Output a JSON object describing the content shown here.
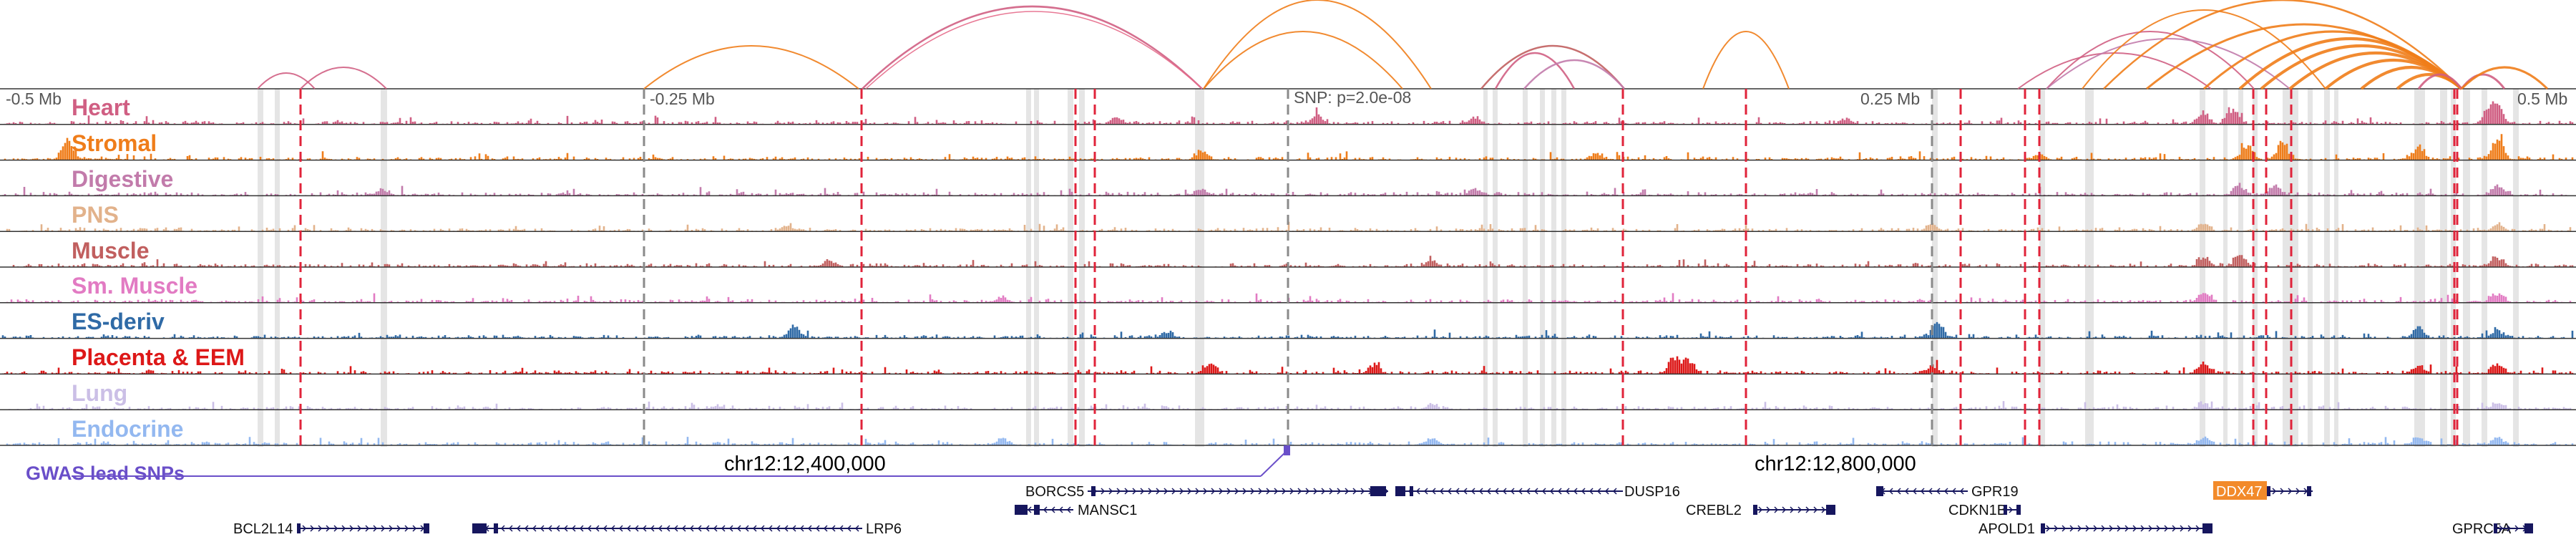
{
  "colors": {
    "Heart": "#d05f83",
    "Stromal": "#ef7d1a",
    "Digestive": "#c27bab",
    "PNS": "#e2b28b",
    "Muscle": "#c15f5f",
    "Sm. Muscle": "#e27bc3",
    "ES-deriv": "#2f6aa6",
    "Placenta & EEM": "#dd1818",
    "Lung": "#cbbfe6",
    "Endocrine": "#93b8f0",
    "gwas": "#6a4fc9",
    "gene": "#16165e",
    "highlight_gene_bg": "#f28a2a",
    "boundary": "#e0233a"
  },
  "tracks": [
    "Heart",
    "Stromal",
    "Digestive",
    "PNS",
    "Muscle",
    "Sm. Muscle",
    "ES-deriv",
    "Placenta & EEM",
    "Lung",
    "Endocrine"
  ],
  "ruler": {
    "left": "-0.5 Mb",
    "mid_left": "-0.25 Mb",
    "snp": "SNP: p=2.0e-08",
    "mid_right": "0.25 Mb",
    "right": "0.5 Mb"
  },
  "gwas": {
    "label": "GWAS lead SNPs",
    "coord_left": "chr12:12,400,000",
    "coord_right": "chr12:12,800,000"
  },
  "genes": {
    "row1": [
      "BORCS5",
      "DUSP16",
      "GPR19",
      "DDX47"
    ],
    "row2": [
      "MANSC1",
      "CREBL2",
      "CDKN1B"
    ],
    "row3": [
      "BCL2L14",
      "LRP6",
      "APOLD1",
      "GPRC5A"
    ]
  }
}
